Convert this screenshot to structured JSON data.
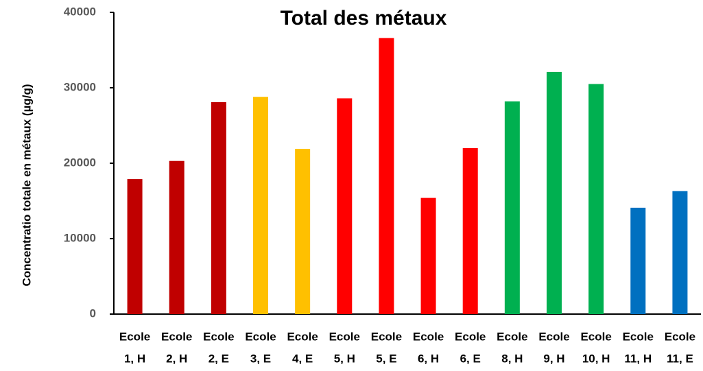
{
  "chart_data": {
    "type": "bar",
    "title": "Total des métaux",
    "ylabel": "Concentratio totale en métaux (µg/g)",
    "categories": [
      [
        "Ecole",
        "1, H"
      ],
      [
        "Ecole",
        "2, H"
      ],
      [
        "Ecole",
        "2, E"
      ],
      [
        "Ecole",
        "3, E"
      ],
      [
        "Ecole",
        "4, E"
      ],
      [
        "Ecole",
        "5, H"
      ],
      [
        "Ecole",
        "5, E"
      ],
      [
        "Ecole",
        "6, H"
      ],
      [
        "Ecole",
        "6, E"
      ],
      [
        "Ecole",
        "8, H"
      ],
      [
        "Ecole",
        "9, H"
      ],
      [
        "Ecole",
        "10, H"
      ],
      [
        "Ecole",
        "11, H"
      ],
      [
        "Ecole",
        "11, E"
      ]
    ],
    "values": [
      17900,
      20300,
      28100,
      28800,
      21900,
      28600,
      36600,
      15400,
      22000,
      28200,
      32100,
      30500,
      14100,
      16300
    ],
    "colors": [
      "#c00000",
      "#c00000",
      "#c00000",
      "#ffc000",
      "#ffc000",
      "#ff0000",
      "#ff0000",
      "#ff0000",
      "#ff0000",
      "#00b050",
      "#00b050",
      "#00b050",
      "#0070c0",
      "#0070c0"
    ],
    "ylim": [
      0,
      40000
    ],
    "yticks": [
      0,
      10000,
      20000,
      30000,
      40000
    ],
    "grid": false
  }
}
